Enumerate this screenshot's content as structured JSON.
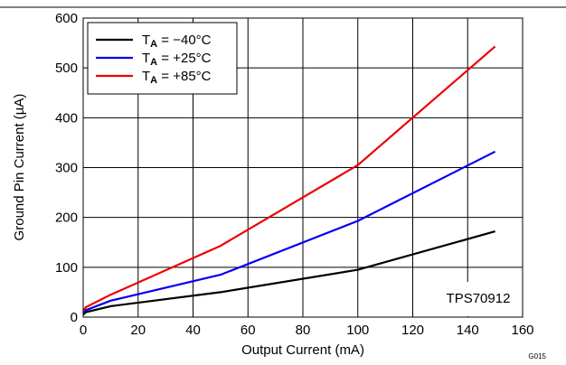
{
  "chart_data": {
    "type": "line",
    "xlabel": "Output Current (mA)",
    "ylabel": "Ground Pin Current (µA)",
    "xlim": [
      0,
      160
    ],
    "ylim": [
      0,
      600
    ],
    "x_ticks": [
      "0",
      "20",
      "40",
      "60",
      "80",
      "100",
      "120",
      "140",
      "160"
    ],
    "y_ticks": [
      "0",
      "100",
      "200",
      "300",
      "400",
      "500",
      "600"
    ],
    "grid": true,
    "legend_position": "top-left",
    "series": [
      {
        "name": "T_A = −40°C",
        "label_main": "T",
        "label_sub": "A",
        "label_rest": " = −40°C",
        "color": "#000000",
        "x": [
          0,
          1,
          10,
          50,
          100,
          150
        ],
        "y": [
          5,
          10,
          22,
          50,
          95,
          172
        ]
      },
      {
        "name": "T_A = +25°C",
        "label_main": "T",
        "label_sub": "A",
        "label_rest": " = +25°C",
        "color": "#0000ee",
        "x": [
          0,
          1,
          10,
          50,
          100,
          150
        ],
        "y": [
          8,
          14,
          33,
          85,
          193,
          332
        ]
      },
      {
        "name": "T_A = +85°C",
        "label_main": "T",
        "label_sub": "A",
        "label_rest": " = +85°C",
        "color": "#ee0000",
        "x": [
          0,
          1,
          10,
          50,
          100,
          150
        ],
        "y": [
          12,
          20,
          45,
          143,
          305,
          543
        ]
      }
    ],
    "annotations": {
      "device": "TPS70912",
      "figure_code": "G015"
    }
  }
}
